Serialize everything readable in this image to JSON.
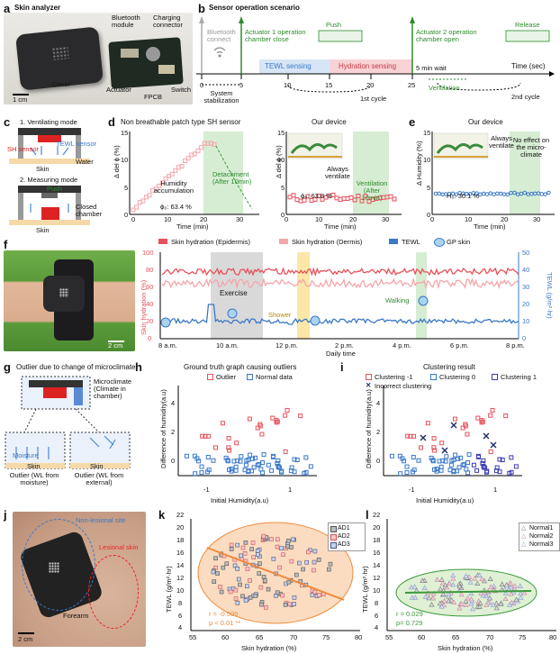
{
  "panels": {
    "a": {
      "letter": "a",
      "title": "Skin analyzer",
      "labels": [
        "Bluetooth module",
        "Charging connector",
        "Cover",
        "Actuator",
        "FPCB",
        "Switch"
      ],
      "scale": "1 cm"
    },
    "b": {
      "letter": "b",
      "title": "Sensor operation scenario",
      "top_labels": [
        "Bluetooth connect",
        "Actuator 1 operation chamber close",
        "Push",
        "Actuator 2 operation chamber open",
        "Release"
      ],
      "segments": [
        "TEWL sensing",
        "Hydration sensing",
        "5 min wait",
        "Ventilation"
      ],
      "ticks": [
        "0",
        "5",
        "10",
        "15",
        "20",
        "25"
      ],
      "time_label": "Time (sec)",
      "bottom_labels": [
        "System stabilization",
        "1st cycle",
        "2nd cycle"
      ]
    },
    "c": {
      "letter": "c",
      "mode1": "1. Ventilating mode",
      "mode2": "2. Measuring mode",
      "labels": [
        "TEWL sensor",
        "SH sensor",
        "Water",
        "Skin",
        "Push",
        "Closed chamber",
        "Skin"
      ]
    },
    "d1": {
      "letter": "d",
      "title": "Non breathable patch type SH sensor",
      "ylabel": "Δ del ϕ (%)",
      "xlabel": "Time (min)",
      "yticks": [
        "0",
        "5",
        "10",
        "15"
      ],
      "xticks": [
        "0",
        "10",
        "20",
        "30"
      ],
      "annotations": [
        "Humidity accumulation",
        "Detachment (After 10min)",
        "ϕ₀: 63.4 %"
      ]
    },
    "d2": {
      "title": "Our device",
      "ylabel": "Δ del ϕ (%)",
      "xlabel": "Time (min)",
      "yticks": [
        "0",
        "5",
        "10",
        "15"
      ],
      "xticks": [
        "0",
        "10",
        "20",
        "30"
      ],
      "annotations": [
        "Always ventilate",
        "Ventilation (After 10min)",
        "ϕ₀: 63.8 %"
      ]
    },
    "e": {
      "letter": "e",
      "title": "Our device",
      "ylabel": "Δ Humidity (%)",
      "xlabel": "Time (min)",
      "yticks": [
        "0",
        "5",
        "10",
        "15"
      ],
      "xticks": [
        "0",
        "10",
        "20",
        "30"
      ],
      "annotations": [
        "Always ventilate",
        "No effect on the micro-climate",
        "H₀: 30.1 %"
      ]
    },
    "f": {
      "letter": "f",
      "legend": [
        "Skin hydration (Epidermis)",
        "Skin hydration (Dermis)",
        "TEWL",
        "GP skin"
      ],
      "ylabel_left": "Skin hydration (%)",
      "ylabel_right": "TEWL (g/m²·hr)",
      "xlabel": "Daily time",
      "yticks_left": [
        "0",
        "20",
        "40",
        "60",
        "80",
        "100"
      ],
      "yticks_right": [
        "0",
        "10",
        "20",
        "30",
        "40",
        "50"
      ],
      "xticks": [
        "8 a.m.",
        "10 a.m.",
        "12 p.m.",
        "2 p.m.",
        "4 p.m.",
        "6 p.m.",
        "8 p.m."
      ],
      "annotations": [
        "Exercise",
        "Shower",
        "Walking"
      ],
      "scale": "2 cm"
    },
    "g": {
      "letter": "g",
      "title": "Outlier due to change of microclimate",
      "labels": [
        "Microclimate (Climate in chamber)",
        "Moisture",
        "Skin",
        "Skin",
        "Outlier (WL from moisture)",
        "Outlier (WL from external)"
      ]
    },
    "h": {
      "letter": "h",
      "title": "Ground truth graph causing outliers",
      "legend": [
        "Outlier",
        "Normal data"
      ],
      "ylabel": "Difference of humidity(a.u)",
      "xlabel": "Initial Humidity(a.u)",
      "yticks": [
        "0",
        "2",
        "4"
      ],
      "xticks": [
        "-1",
        "1"
      ]
    },
    "i": {
      "letter": "i",
      "title": "Clustering result",
      "legend": [
        "Clustering -1",
        "Clustering 0",
        "Clustering 1",
        "Incorrect clustering"
      ],
      "ylabel": "Difference of humidity(a.u)",
      "xlabel": "Initial Humidity(a.u)",
      "yticks": [
        "0",
        "2",
        "4"
      ],
      "xticks": [
        "-1",
        "1"
      ]
    },
    "j": {
      "letter": "j",
      "labels": [
        "Non-lesional site",
        "Lesional skin",
        "Forearm"
      ],
      "scale": "2 cm"
    },
    "k": {
      "letter": "k",
      "legend": [
        "AD1",
        "AD2",
        "AD3"
      ],
      "ylabel": "TEWL (g/m²·hr)",
      "xlabel": "Skin hydration (%)",
      "yticks": [
        "4",
        "6",
        "8",
        "10",
        "12",
        "14",
        "16",
        "18",
        "20",
        "22"
      ],
      "xticks": [
        "55",
        "60",
        "65",
        "70",
        "75",
        "80"
      ],
      "stats": [
        "r = -0.509",
        "p < 0.01 **"
      ]
    },
    "l": {
      "letter": "l",
      "legend": [
        "Normal1",
        "Normal2",
        "Normal3"
      ],
      "ylabel": "TEWL (g/m²·hr)",
      "xlabel": "Skin hydration (%)",
      "yticks": [
        "4",
        "6",
        "8",
        "10",
        "12",
        "14",
        "16",
        "18",
        "20",
        "22"
      ],
      "xticks": [
        "55",
        "60",
        "65",
        "70",
        "75",
        "80"
      ],
      "stats": [
        "r = 0.029",
        "p= 0.729"
      ]
    }
  },
  "colors": {
    "hydration": "#e8505b",
    "hydration_light": "#f4a6ab",
    "tewl": "#3a78c9",
    "green": "#2e8b2e",
    "green_band": "#d6edd3",
    "gray_band": "#d9d9d9",
    "yellow_band": "#fbe7a6",
    "outlier": "#e8505b",
    "normal": "#3a78c9",
    "k_fill": "#fbdcc0",
    "k_edge": "#f08a3c",
    "l_fill": "#dff0d4",
    "l_edge": "#3c9a3c"
  }
}
